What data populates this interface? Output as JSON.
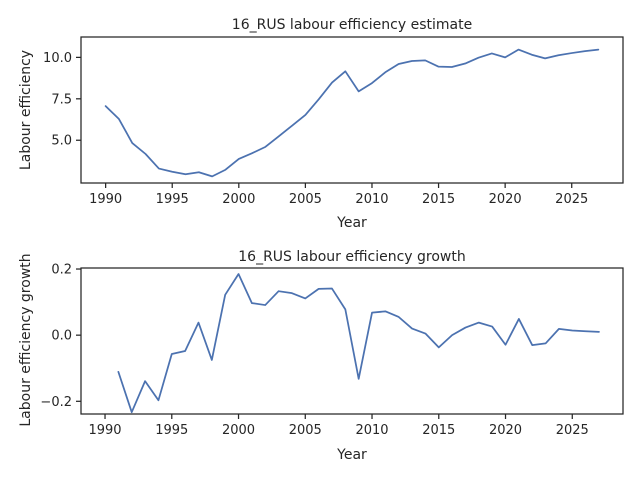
{
  "chart_data": [
    {
      "type": "line",
      "title": "16_RUS labour efficiency estimate",
      "xlabel": "Year",
      "ylabel": "Labour efficiency",
      "xlim": [
        1988.15,
        2028.85
      ],
      "ylim": [
        2.42,
        11.23
      ],
      "xticks": [
        1990,
        1995,
        2000,
        2005,
        2010,
        2015,
        2020,
        2025
      ],
      "yticks": [
        5.0,
        7.5,
        10.0
      ],
      "ytick_labels": [
        "5.0",
        "7.5",
        "10.0"
      ],
      "series": [
        {
          "name": "Labour efficiency",
          "x": [
            1990,
            1991,
            1992,
            1993,
            1994,
            1995,
            1996,
            1997,
            1998,
            1999,
            2000,
            2001,
            2002,
            2003,
            2004,
            2005,
            2006,
            2007,
            2008,
            2009,
            2010,
            2011,
            2012,
            2013,
            2014,
            2015,
            2016,
            2017,
            2018,
            2019,
            2020,
            2021,
            2022,
            2023,
            2024,
            2025,
            2026,
            2027
          ],
          "values": [
            7.06,
            6.28,
            4.83,
            4.17,
            3.29,
            3.1,
            2.95,
            3.07,
            2.82,
            3.22,
            3.87,
            4.22,
            4.6,
            5.24,
            5.88,
            6.53,
            7.47,
            8.48,
            9.16,
            7.95,
            8.45,
            9.1,
            9.6,
            9.78,
            9.82,
            9.44,
            9.42,
            9.63,
            9.98,
            10.24,
            10.0,
            10.47,
            10.16,
            9.94,
            10.13,
            10.26,
            10.38,
            10.47
          ]
        }
      ]
    },
    {
      "type": "line",
      "title": "16_RUS labour efficiency growth",
      "xlabel": "Year",
      "ylabel": "Labour efficiency growth",
      "xlim": [
        1988.2,
        2028.8
      ],
      "ylim": [
        -0.2384,
        0.2031
      ],
      "xticks": [
        1990,
        1995,
        2000,
        2005,
        2010,
        2015,
        2020,
        2025
      ],
      "yticks": [
        -0.2,
        0.0,
        0.2
      ],
      "ytick_labels": [
        "−0.2",
        "0.0",
        "0.2"
      ],
      "series": [
        {
          "name": "Labour efficiency growth",
          "x": [
            1991,
            1992,
            1993,
            1994,
            1995,
            1996,
            1997,
            1998,
            1999,
            2000,
            2001,
            2002,
            2003,
            2004,
            2005,
            2006,
            2007,
            2008,
            2009,
            2010,
            2011,
            2012,
            2013,
            2014,
            2015,
            2016,
            2017,
            2018,
            2019,
            2020,
            2021,
            2022,
            2023,
            2024,
            2025,
            2026,
            2027
          ],
          "values": [
            -0.111,
            -0.233,
            -0.139,
            -0.197,
            -0.057,
            -0.048,
            0.038,
            -0.075,
            0.122,
            0.185,
            0.097,
            0.091,
            0.133,
            0.127,
            0.111,
            0.14,
            0.141,
            0.078,
            -0.132,
            0.068,
            0.072,
            0.055,
            0.02,
            0.005,
            -0.037,
            0.0,
            0.023,
            0.038,
            0.026,
            -0.029,
            0.049,
            -0.03,
            -0.025,
            0.019,
            0.014,
            0.012,
            0.01
          ]
        }
      ]
    }
  ]
}
